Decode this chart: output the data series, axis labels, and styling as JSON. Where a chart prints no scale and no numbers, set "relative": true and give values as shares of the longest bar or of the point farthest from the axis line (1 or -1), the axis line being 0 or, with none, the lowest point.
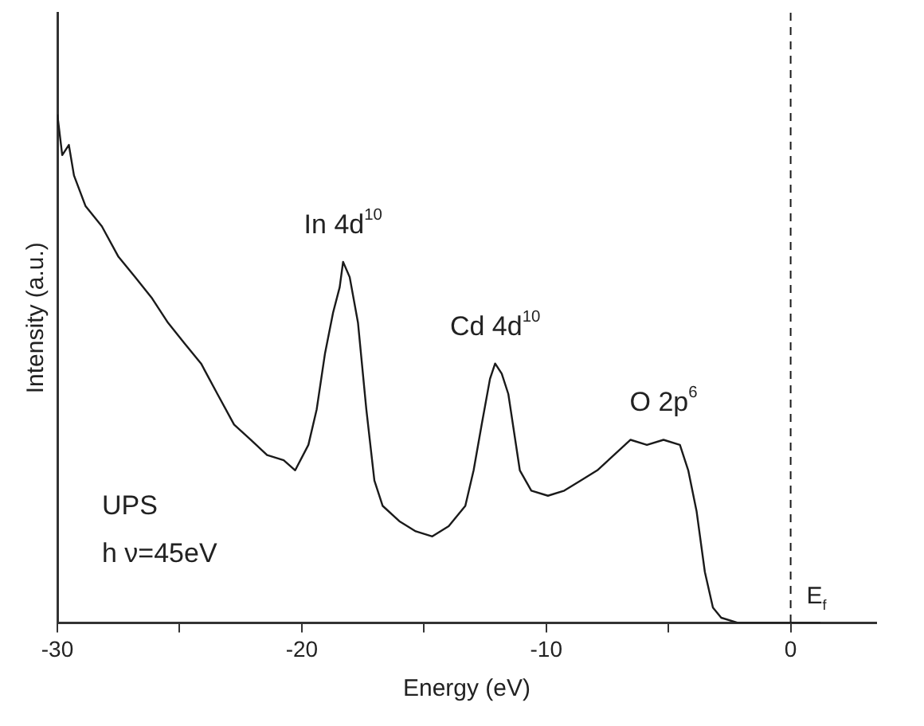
{
  "chart_data": {
    "type": "line",
    "relative": true,
    "xlabel": "Energy (eV)",
    "ylabel": "Intensity (a.u.)",
    "color": "#1a1a1a",
    "xlim": [
      -30,
      3.5
    ],
    "xticks": [
      -30,
      {
        "value": -25,
        "label": null
      },
      -20,
      {
        "value": -15,
        "label": null
      },
      -10,
      {
        "value": -5,
        "label": null
      },
      0
    ],
    "x": [
      -30,
      -29.8,
      -29.53,
      -29.32,
      -28.85,
      -28.18,
      -27.5,
      -26.82,
      -26.15,
      -25.47,
      -24.8,
      -24.12,
      -23.45,
      -22.77,
      -22.09,
      -21.42,
      -20.74,
      -20.27,
      -19.73,
      -19.39,
      -19.05,
      -18.72,
      -18.45,
      -18.31,
      -18.04,
      -17.7,
      -17.36,
      -17.03,
      -16.69,
      -16.01,
      -15.34,
      -14.66,
      -13.99,
      -13.31,
      -12.97,
      -12.64,
      -12.3,
      -12.09,
      -11.82,
      -11.55,
      -11.08,
      -10.61,
      -9.93,
      -9.26,
      -8.58,
      -7.91,
      -7.23,
      -6.55,
      -5.88,
      -5.2,
      -4.53,
      -4.19,
      -3.85,
      -3.51,
      -3.18,
      -2.84,
      -2.16,
      -1.15,
      1.22
    ],
    "values": [
      1.0,
      0.92,
      0.94,
      0.88,
      0.82,
      0.78,
      0.72,
      0.68,
      0.64,
      0.59,
      0.55,
      0.51,
      0.45,
      0.39,
      0.36,
      0.33,
      0.32,
      0.3,
      0.35,
      0.42,
      0.53,
      0.61,
      0.66,
      0.71,
      0.68,
      0.59,
      0.42,
      0.28,
      0.23,
      0.2,
      0.18,
      0.17,
      0.19,
      0.23,
      0.3,
      0.39,
      0.48,
      0.51,
      0.49,
      0.45,
      0.3,
      0.26,
      0.25,
      0.26,
      0.28,
      0.3,
      0.33,
      0.36,
      0.35,
      0.36,
      0.35,
      0.3,
      0.22,
      0.1,
      0.03,
      0.01,
      0,
      0,
      0
    ],
    "line_style": "solid",
    "marker": "none",
    "grid": false,
    "legend": false,
    "ref_lines": [
      {
        "axis": "x",
        "value": 0,
        "label": "E$_{f}$",
        "line_style": "dashed",
        "color": "#1a1a1a"
      }
    ],
    "annotations": [
      {
        "text": "In 4d$^{10}$",
        "x": -18.31,
        "y": 0.71
      },
      {
        "text": "Cd 4d$^{10}$",
        "x": -12.09,
        "y": 0.51
      },
      {
        "text": "O 2p$^{6}$",
        "x": -5.2,
        "y": 0.36
      },
      "UPS",
      "h ν=45eV"
    ]
  }
}
